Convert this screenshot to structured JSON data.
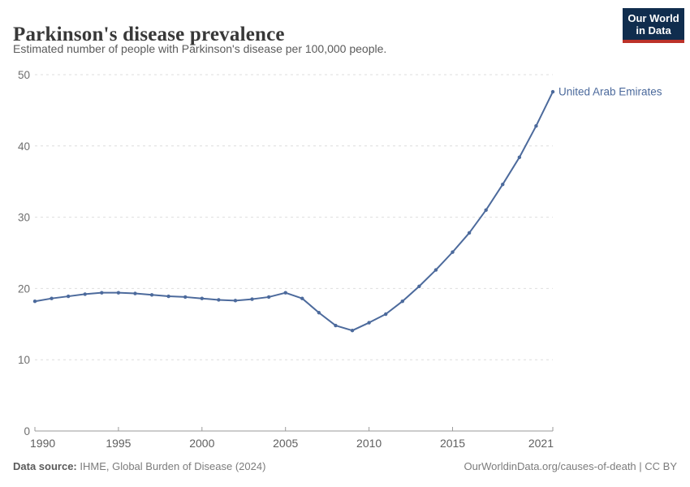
{
  "header": {
    "title": "Parkinson's disease prevalence",
    "subtitle": "Estimated number of people with Parkinson's disease per 100,000 people.",
    "logo": {
      "line1": "Our World",
      "line2": "in Data"
    }
  },
  "chart_data": {
    "type": "line",
    "title": "Parkinson's disease prevalence",
    "subtitle": "Estimated number of people with Parkinson's disease per 100,000 people.",
    "xlabel": "",
    "ylabel": "",
    "xlim": [
      1990,
      2021
    ],
    "ylim": [
      0,
      50
    ],
    "xticks": [
      1990,
      1995,
      2000,
      2005,
      2010,
      2015,
      2021
    ],
    "yticks": [
      0,
      10,
      20,
      30,
      40,
      50
    ],
    "grid": "horizontal-dashed",
    "legend_position": "end-of-line-label",
    "series": [
      {
        "name": "United Arab Emirates",
        "color": "#4c6a9c",
        "x": [
          1990,
          1991,
          1992,
          1993,
          1994,
          1995,
          1996,
          1997,
          1998,
          1999,
          2000,
          2001,
          2002,
          2003,
          2004,
          2005,
          2006,
          2007,
          2008,
          2009,
          2010,
          2011,
          2012,
          2013,
          2014,
          2015,
          2016,
          2017,
          2018,
          2019,
          2020,
          2021
        ],
        "values": [
          18.2,
          18.6,
          18.9,
          19.2,
          19.4,
          19.4,
          19.3,
          19.1,
          18.9,
          18.8,
          18.6,
          18.4,
          18.3,
          18.5,
          18.8,
          19.4,
          18.6,
          16.6,
          14.8,
          14.1,
          15.2,
          16.4,
          18.2,
          20.3,
          22.6,
          25.1,
          27.8,
          31.0,
          34.6,
          38.4,
          42.8,
          47.6
        ]
      }
    ]
  },
  "footer": {
    "source_label": "Data source:",
    "source_text": "IHME, Global Burden of Disease (2024)",
    "credit": "OurWorldinData.org/causes-of-death | CC BY"
  },
  "colors": {
    "line": "#4c6a9c",
    "grid": "#dedede",
    "axis": "#9a9a9a",
    "y_tick_label": "#6e6e6e",
    "x_tick_label": "#5f5f5f",
    "logo_bg": "#102d4e",
    "logo_red": "#bc3229"
  }
}
